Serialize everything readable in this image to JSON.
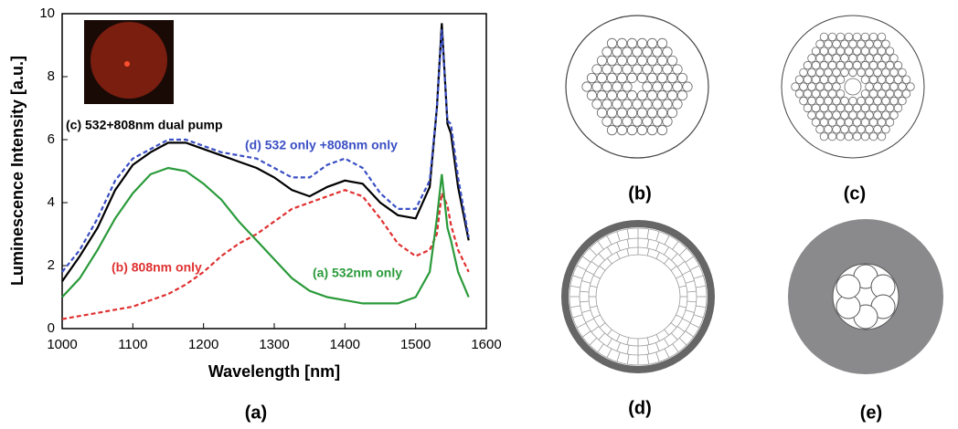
{
  "chart_data": {
    "type": "line",
    "xlabel": "Wavelength [nm]",
    "ylabel": "Luminescence Intensity [a.u.]",
    "x": [
      1000,
      1025,
      1050,
      1075,
      1100,
      1125,
      1150,
      1175,
      1200,
      1225,
      1250,
      1275,
      1300,
      1325,
      1350,
      1375,
      1400,
      1425,
      1450,
      1475,
      1500,
      1520,
      1530,
      1537,
      1545,
      1550,
      1560,
      1575
    ],
    "series": [
      {
        "name": "(c) 532+808nm dual pump",
        "color": "#000000",
        "dashed": false,
        "values": [
          1.5,
          2.3,
          3.2,
          4.4,
          5.2,
          5.6,
          5.9,
          5.9,
          5.7,
          5.5,
          5.3,
          5.1,
          4.8,
          4.4,
          4.2,
          4.5,
          4.7,
          4.6,
          4.0,
          3.6,
          3.5,
          4.5,
          7.0,
          9.7,
          6.5,
          6.2,
          4.5,
          2.8
        ]
      },
      {
        "name": "(d) 532 only +808nm only",
        "color": "#3b4fc4",
        "dashed": true,
        "values": [
          1.8,
          2.5,
          3.5,
          4.7,
          5.4,
          5.7,
          6.0,
          6.0,
          5.8,
          5.6,
          5.5,
          5.4,
          5.1,
          4.8,
          4.8,
          5.2,
          5.4,
          5.1,
          4.3,
          3.8,
          3.8,
          4.7,
          7.0,
          9.5,
          6.6,
          6.5,
          4.8,
          2.9
        ]
      },
      {
        "name": "(b) 808nm only",
        "color": "#e03030",
        "dashed": true,
        "values": [
          0.3,
          0.4,
          0.5,
          0.6,
          0.7,
          0.9,
          1.1,
          1.4,
          1.8,
          2.3,
          2.7,
          3.0,
          3.4,
          3.8,
          4.0,
          4.2,
          4.4,
          4.2,
          3.5,
          2.7,
          2.3,
          2.5,
          3.0,
          4.3,
          3.9,
          3.3,
          2.5,
          1.8
        ]
      },
      {
        "name": "(a) 532nm only",
        "color": "#2a9a3a",
        "dashed": false,
        "values": [
          1.0,
          1.6,
          2.5,
          3.5,
          4.3,
          4.9,
          5.1,
          5.0,
          4.6,
          4.1,
          3.4,
          2.8,
          2.2,
          1.6,
          1.2,
          1.0,
          0.9,
          0.8,
          0.8,
          0.8,
          1.0,
          1.8,
          3.5,
          4.9,
          3.2,
          2.8,
          1.8,
          1.0
        ]
      }
    ],
    "xlim": [
      1000,
      1600
    ],
    "xticks": [
      1000,
      1100,
      1200,
      1300,
      1400,
      1500,
      1600
    ],
    "ylim": [
      0,
      10
    ],
    "yticks": [
      0,
      2,
      4,
      6,
      8,
      10
    ]
  },
  "panel_labels": [
    "(a)",
    "(b)",
    "(c)",
    "(d)",
    "(e)"
  ]
}
